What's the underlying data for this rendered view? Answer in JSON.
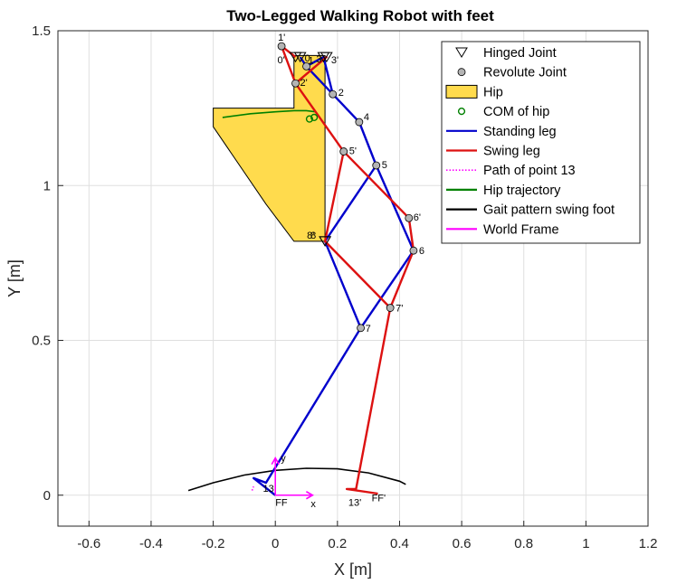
{
  "chart_data": {
    "type": "line",
    "title": "Two-Legged Walking Robot with feet",
    "xlabel": "X [m]",
    "ylabel": "Y [m]",
    "xlim": [
      -0.7,
      1.2
    ],
    "ylim": [
      -0.1,
      1.5
    ],
    "xticks": [
      -0.6,
      -0.4,
      -0.2,
      0,
      0.2,
      0.4,
      0.6,
      0.8,
      1,
      1.2
    ],
    "yticks": [
      0,
      0.5,
      1,
      1.5
    ],
    "xtick_labels": [
      "-0.6",
      "-0.4",
      "-0.2",
      "0",
      "0.2",
      "0.4",
      "0.6",
      "0.8",
      "1",
      "1.2"
    ],
    "ytick_labels": [
      "0",
      "0.5",
      "1",
      "1.5"
    ],
    "grid": true,
    "legend_position": "top-right",
    "legend": [
      {
        "label": "Hinged Joint",
        "marker": "triangle-down",
        "color": "#000000"
      },
      {
        "label": "Revolute Joint",
        "marker": "circle",
        "color": "#b4b4b4"
      },
      {
        "label": "Hip",
        "marker": "patch",
        "color": "#ffdb4d"
      },
      {
        "label": "COM of hip",
        "marker": "circle-open",
        "color": "#008000"
      },
      {
        "label": "Standing leg",
        "marker": "line",
        "color": "#0000cc"
      },
      {
        "label": "Swing leg",
        "marker": "line",
        "color": "#dd1111"
      },
      {
        "label": "Path of point 13",
        "marker": "dotted",
        "color": "#ff00ff"
      },
      {
        "label": "Hip trajectory",
        "marker": "line",
        "color": "#008000"
      },
      {
        "label": "Gait pattern swing foot",
        "marker": "line",
        "color": "#000000"
      },
      {
        "label": "World Frame",
        "marker": "line",
        "color": "#ff00ff"
      }
    ],
    "hip_polygon": [
      [
        0.06,
        1.42
      ],
      [
        0.16,
        1.42
      ],
      [
        0.16,
        0.82
      ],
      [
        0.06,
        0.82
      ],
      [
        -0.03,
        0.94
      ],
      [
        -0.2,
        1.19
      ],
      [
        -0.2,
        1.25
      ],
      [
        0.06,
        1.25
      ]
    ],
    "hip_trajectory": {
      "x": [
        -0.17,
        -0.08,
        0.0,
        0.06,
        0.1,
        0.13
      ],
      "y": [
        1.22,
        1.232,
        1.238,
        1.242,
        1.242,
        1.238
      ]
    },
    "com_of_hip": [
      [
        0.11,
        1.215
      ],
      [
        0.125,
        1.22
      ]
    ],
    "hinged_joints": [
      {
        "x": 0.065,
        "y": 1.415,
        "label": "0'"
      },
      {
        "x": 0.08,
        "y": 1.415,
        "label": "0"
      },
      {
        "x": 0.155,
        "y": 1.415,
        "label": "3"
      },
      {
        "x": 0.165,
        "y": 1.415,
        "label": "3'"
      },
      {
        "x": 0.16,
        "y": 0.82,
        "label": "8"
      },
      {
        "x": 0.16,
        "y": 0.82,
        "label": "8'"
      }
    ],
    "revolute_joints": [
      {
        "x": 0.02,
        "y": 1.45,
        "label": "1'"
      },
      {
        "x": 0.1,
        "y": 1.385,
        "label": "1"
      },
      {
        "x": 0.065,
        "y": 1.33,
        "label": "2'"
      },
      {
        "x": 0.185,
        "y": 1.295,
        "label": "2"
      },
      {
        "x": 0.27,
        "y": 1.205,
        "label": "4"
      },
      {
        "x": 0.22,
        "y": 1.11,
        "label": "5'"
      },
      {
        "x": 0.325,
        "y": 1.065,
        "label": "5"
      },
      {
        "x": 0.43,
        "y": 0.895,
        "label": "6'"
      },
      {
        "x": 0.445,
        "y": 0.79,
        "label": "6"
      },
      {
        "x": 0.37,
        "y": 0.605,
        "label": "7'"
      },
      {
        "x": 0.275,
        "y": 0.54,
        "label": "7"
      }
    ],
    "standing_leg": [
      {
        "x": [
          0.08,
          0.1,
          0.185,
          0.27,
          0.325,
          0.445,
          0.275,
          0.16,
          0.325
        ],
        "y": [
          1.415,
          1.385,
          1.295,
          1.205,
          1.065,
          0.79,
          0.54,
          0.82,
          1.065
        ]
      },
      {
        "x": [
          0.1,
          0.155,
          0.185
        ],
        "y": [
          1.385,
          1.415,
          1.295
        ]
      },
      {
        "x": [
          0.275,
          -0.03,
          -0.07,
          0.0
        ],
        "y": [
          0.54,
          0.04,
          0.055,
          0.0
        ]
      }
    ],
    "swing_leg": [
      {
        "x": [
          0.065,
          0.02,
          0.065,
          0.22,
          0.43,
          0.445,
          0.37,
          0.16,
          0.22
        ],
        "y": [
          1.415,
          1.45,
          1.33,
          1.11,
          0.895,
          0.79,
          0.605,
          0.82,
          1.11
        ]
      },
      {
        "x": [
          0.065,
          0.165,
          0.065
        ],
        "y": [
          1.33,
          1.415,
          1.33
        ]
      },
      {
        "x": [
          0.37,
          0.26,
          0.23,
          0.33
        ],
        "y": [
          0.605,
          0.02,
          0.02,
          0.005
        ]
      }
    ],
    "gait_pattern": {
      "x": [
        -0.28,
        -0.2,
        -0.1,
        0.0,
        0.1,
        0.2,
        0.3,
        0.4,
        0.42
      ],
      "y": [
        0.015,
        0.04,
        0.065,
        0.08,
        0.087,
        0.085,
        0.072,
        0.045,
        0.035
      ]
    },
    "path_point_13": {
      "x": [
        -0.075,
        -0.07
      ],
      "y": [
        0.015,
        0.028
      ]
    },
    "world_frame": {
      "origin": [
        0.0,
        0.0
      ],
      "x_end": [
        0.12,
        0.0
      ],
      "y_end": [
        0.0,
        0.12
      ],
      "x_label": "x",
      "y_label": "y"
    },
    "annotations": [
      {
        "x": -0.04,
        "y": 0.04,
        "text": "13"
      },
      {
        "x": 0.235,
        "y": -0.005,
        "text": "13'"
      },
      {
        "x": 0.0,
        "y": -0.005,
        "text": "FF"
      },
      {
        "x": 0.31,
        "y": 0.01,
        "text": "FF'"
      }
    ]
  }
}
